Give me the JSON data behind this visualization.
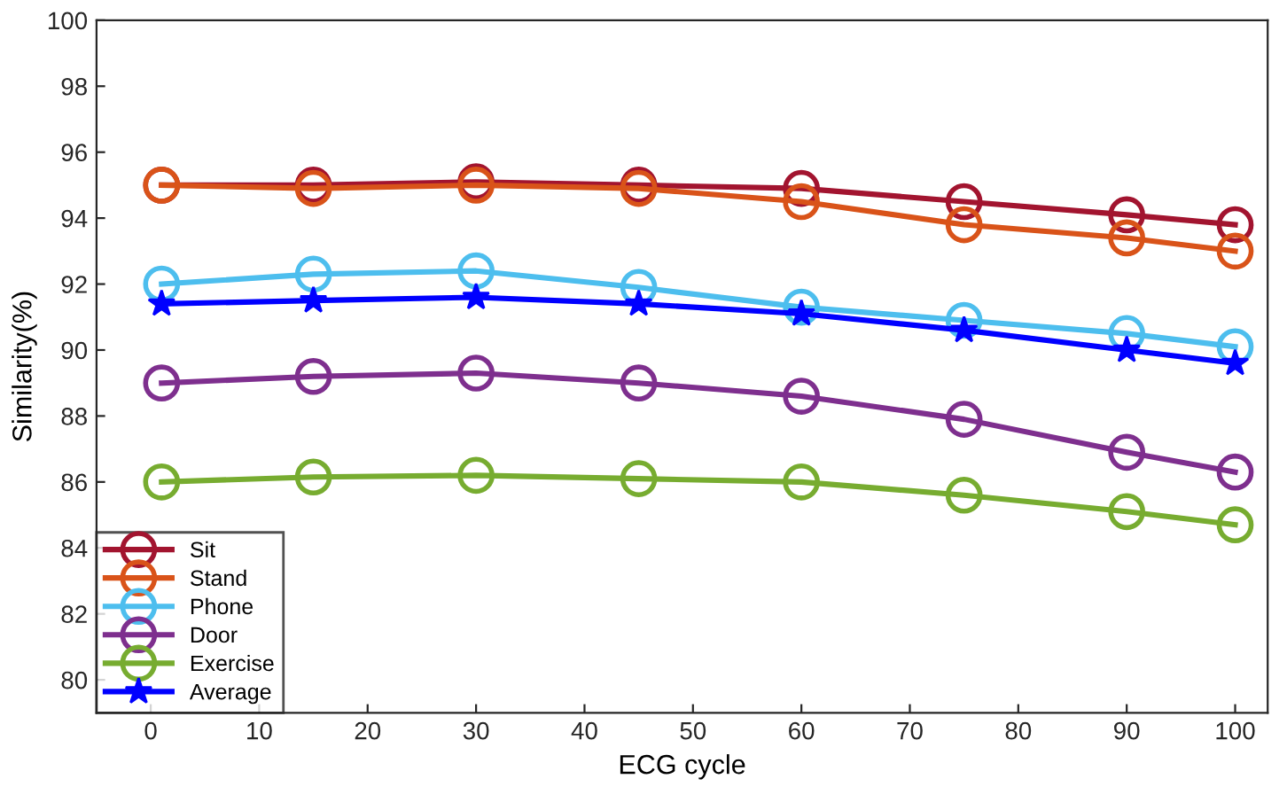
{
  "chart_data": {
    "type": "line",
    "xlabel": "ECG cycle",
    "ylabel": "Similarity(%)",
    "x": [
      1,
      15,
      30,
      45,
      60,
      75,
      90,
      100
    ],
    "xlim": [
      -5,
      103
    ],
    "xticks": [
      0,
      10,
      20,
      30,
      40,
      50,
      60,
      70,
      80,
      90,
      100
    ],
    "ylim": [
      79,
      100
    ],
    "yticks": [
      80,
      82,
      84,
      86,
      88,
      90,
      92,
      94,
      96,
      98,
      100
    ],
    "grid": false,
    "legend": "bottom left",
    "series": [
      {
        "name": "Sit",
        "color": "#a2142f",
        "marker": "circle",
        "values": [
          95.0,
          95.0,
          95.1,
          95.0,
          94.9,
          94.5,
          94.1,
          93.8
        ]
      },
      {
        "name": "Stand",
        "color": "#d95319",
        "marker": "circle",
        "values": [
          95.0,
          94.9,
          95.0,
          94.9,
          94.5,
          93.8,
          93.4,
          93.0
        ]
      },
      {
        "name": "Phone",
        "color": "#4dbeee",
        "marker": "circle",
        "values": [
          92.0,
          92.3,
          92.4,
          91.9,
          91.3,
          90.9,
          90.5,
          90.1
        ]
      },
      {
        "name": "Door",
        "color": "#7e2f8e",
        "marker": "circle",
        "values": [
          89.0,
          89.2,
          89.3,
          89.0,
          88.6,
          87.9,
          86.9,
          86.3
        ]
      },
      {
        "name": "Exercise",
        "color": "#77ac30",
        "marker": "circle",
        "values": [
          86.0,
          86.15,
          86.2,
          86.1,
          86.0,
          85.6,
          85.1,
          84.7
        ]
      },
      {
        "name": "Average",
        "color": "#0000ff",
        "marker": "star",
        "values": [
          91.4,
          91.5,
          91.6,
          91.4,
          91.1,
          90.6,
          90.0,
          89.6
        ]
      }
    ]
  }
}
